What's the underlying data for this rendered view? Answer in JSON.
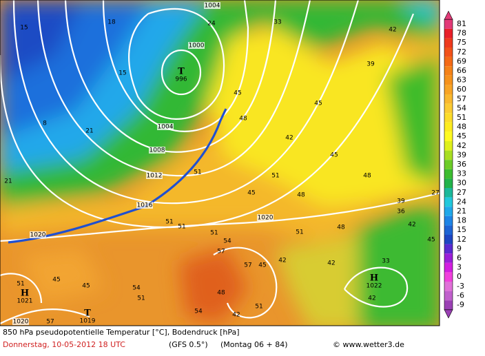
{
  "colorbar": {
    "ticks": [
      81,
      78,
      75,
      72,
      69,
      66,
      63,
      60,
      57,
      54,
      51,
      48,
      45,
      42,
      39,
      36,
      33,
      30,
      27,
      24,
      21,
      18,
      15,
      12,
      9,
      6,
      3,
      0,
      -3,
      -6,
      -9
    ],
    "colors": [
      "#e23a78",
      "#e8202a",
      "#ee3a1e",
      "#f2521a",
      "#f46a16",
      "#f58218",
      "#f6921c",
      "#f8a426",
      "#f9b830",
      "#fbcb34",
      "#fcdc2a",
      "#fdec20",
      "#fffa22",
      "#dff01c",
      "#a8de22",
      "#6ccc28",
      "#3cbc30",
      "#22b24a",
      "#1cb89a",
      "#22c8dc",
      "#20a8ea",
      "#1e84e6",
      "#1e64d4",
      "#1e46c2",
      "#5a2ad0",
      "#9a1ed8",
      "#d21ee0",
      "#f040dc",
      "#e070d8",
      "#c060cc",
      "#9a40b4"
    ]
  },
  "footer": {
    "title": "850 hPa pseudopotentielle Temperatur [°C], Bodendruck [hPa]",
    "date": "Donnerstag, 10-05-2012  18 UTC",
    "model": "(GFS 0.5°)",
    "run": "(Montag 06 + 84)",
    "source": "© www.wetter3.de"
  },
  "isobar_labels": [
    1004,
    1000,
    1004,
    1008,
    1012,
    1016,
    1020,
    1020,
    1020
  ],
  "pressure_centers": [
    {
      "symbol": "T",
      "value": 996
    },
    {
      "symbol": "H",
      "value": 1021
    },
    {
      "symbol": "T",
      "value": 1019
    },
    {
      "symbol": "H",
      "value": 1022
    }
  ],
  "theta_labels": [
    15,
    18,
    15,
    8,
    21,
    21,
    24,
    33,
    42,
    39,
    45,
    48,
    45,
    42,
    45,
    48,
    51,
    45,
    48,
    51,
    51,
    51,
    51,
    51,
    48,
    54,
    57,
    57,
    45,
    42,
    42,
    33,
    51,
    45,
    45,
    54,
    51,
    48,
    51,
    54,
    42,
    57,
    42,
    39,
    36,
    42,
    45,
    27
  ]
}
